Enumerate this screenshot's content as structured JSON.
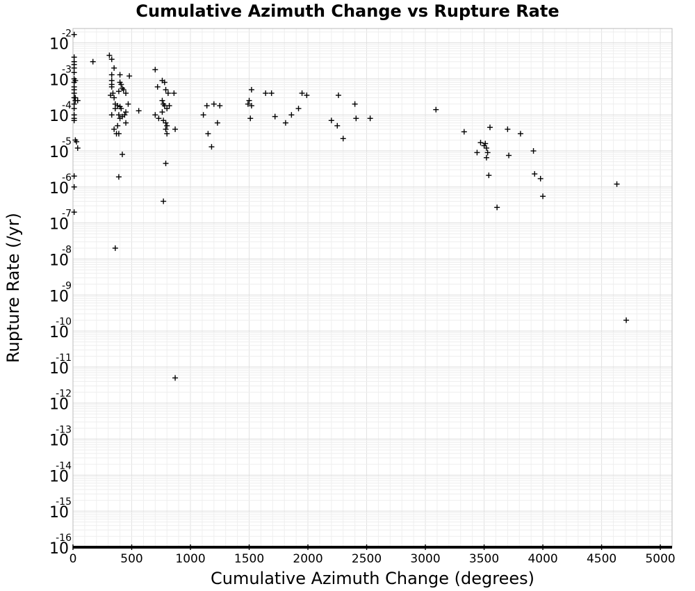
{
  "chart_data": {
    "type": "scatter",
    "title": "Cumulative Azimuth Change vs Rupture Rate",
    "xlabel": "Cumulative Azimuth Change (degrees)",
    "ylabel": "Rupture Rate (/yr)",
    "xlim": [
      0,
      5100
    ],
    "ylim": [
      1e-16,
      0.025
    ],
    "y_scale": "log",
    "x_ticks": [
      0,
      500,
      1000,
      1500,
      2000,
      2500,
      3000,
      3500,
      4000,
      4500,
      5000
    ],
    "y_tick_exponents": [
      -2,
      -3,
      -4,
      -5,
      -6,
      -7,
      -8,
      -9,
      -10,
      -11,
      -12,
      -13,
      -14,
      -15,
      -16
    ],
    "y_tick_base": "10",
    "grid": true,
    "marker": "+",
    "series": [
      {
        "points": [
          [
            10,
            0.017
          ],
          [
            10,
            0.004
          ],
          [
            10,
            0.003
          ],
          [
            10,
            0.0025
          ],
          [
            10,
            0.002
          ],
          [
            10,
            0.0015
          ],
          [
            10,
            0.001
          ],
          [
            10,
            0.0008
          ],
          [
            10,
            0.0006
          ],
          [
            10,
            0.0005
          ],
          [
            10,
            0.0004
          ],
          [
            10,
            0.0003
          ],
          [
            10,
            0.0002
          ],
          [
            10,
            0.00015
          ],
          [
            10,
            0.0001
          ],
          [
            10,
            8e-05
          ],
          [
            10,
            7e-05
          ],
          [
            20,
            0.00025
          ],
          [
            20,
            0.0009
          ],
          [
            20,
            0.0003
          ],
          [
            40,
            0.00025
          ],
          [
            20,
            2e-05
          ],
          [
            30,
            1.8e-05
          ],
          [
            40,
            1.2e-05
          ],
          [
            10,
            2e-06
          ],
          [
            10,
            1e-06
          ],
          [
            10,
            2e-07
          ],
          [
            170,
            0.003
          ],
          [
            310,
            0.0045
          ],
          [
            330,
            0.0035
          ],
          [
            350,
            0.002
          ],
          [
            330,
            0.0013
          ],
          [
            330,
            0.0009
          ],
          [
            330,
            0.0007
          ],
          [
            330,
            0.0006
          ],
          [
            320,
            0.00035
          ],
          [
            340,
            0.0004
          ],
          [
            350,
            0.0003
          ],
          [
            360,
            0.0002
          ],
          [
            360,
            0.00015
          ],
          [
            330,
            0.0001
          ],
          [
            350,
            4e-05
          ],
          [
            370,
            3e-05
          ],
          [
            400,
            0.0013
          ],
          [
            400,
            0.0008
          ],
          [
            410,
            0.0007
          ],
          [
            390,
            0.00045
          ],
          [
            420,
            0.00055
          ],
          [
            430,
            0.0005
          ],
          [
            450,
            0.0004
          ],
          [
            380,
            0.00018
          ],
          [
            400,
            0.00017
          ],
          [
            410,
            0.00015
          ],
          [
            390,
            0.0001
          ],
          [
            420,
            9e-05
          ],
          [
            400,
            8e-05
          ],
          [
            450,
            6e-05
          ],
          [
            470,
            0.0002
          ],
          [
            480,
            0.0012
          ],
          [
            450,
            0.00012
          ],
          [
            440,
            0.0001
          ],
          [
            380,
            5e-05
          ],
          [
            390,
            3e-05
          ],
          [
            420,
            8e-06
          ],
          [
            390,
            1.9e-06
          ],
          [
            360,
            2e-08
          ],
          [
            560,
            0.00013
          ],
          [
            700,
            0.0018
          ],
          [
            720,
            0.0006
          ],
          [
            760,
            0.0009
          ],
          [
            780,
            0.0008
          ],
          [
            790,
            0.0005
          ],
          [
            810,
            0.0004
          ],
          [
            760,
            0.00025
          ],
          [
            770,
            0.0002
          ],
          [
            780,
            0.00018
          ],
          [
            800,
            0.00015
          ],
          [
            820,
            0.00018
          ],
          [
            760,
            0.00012
          ],
          [
            700,
            0.0001
          ],
          [
            730,
            8e-05
          ],
          [
            770,
            7e-05
          ],
          [
            790,
            6e-05
          ],
          [
            800,
            5e-05
          ],
          [
            790,
            4e-05
          ],
          [
            800,
            3e-05
          ],
          [
            860,
            0.0004
          ],
          [
            870,
            4e-05
          ],
          [
            790,
            4.5e-06
          ],
          [
            770,
            4e-07
          ],
          [
            870,
            5e-12
          ],
          [
            1110,
            0.0001
          ],
          [
            1140,
            0.00018
          ],
          [
            1200,
            0.0002
          ],
          [
            1250,
            0.00018
          ],
          [
            1230,
            6e-05
          ],
          [
            1150,
            3e-05
          ],
          [
            1180,
            1.3e-05
          ],
          [
            1490,
            0.0002
          ],
          [
            1500,
            0.00025
          ],
          [
            1520,
            0.00018
          ],
          [
            1520,
            0.0005
          ],
          [
            1510,
            8e-05
          ],
          [
            1640,
            0.0004
          ],
          [
            1690,
            0.0004
          ],
          [
            1720,
            9e-05
          ],
          [
            1810,
            6e-05
          ],
          [
            1860,
            0.0001
          ],
          [
            1920,
            0.00015
          ],
          [
            1950,
            0.0004
          ],
          [
            1990,
            0.00035
          ],
          [
            2200,
            7e-05
          ],
          [
            2250,
            5e-05
          ],
          [
            2260,
            0.00035
          ],
          [
            2300,
            2.2e-05
          ],
          [
            2400,
            0.0002
          ],
          [
            2410,
            8e-05
          ],
          [
            2530,
            8e-05
          ],
          [
            3090,
            0.00014
          ],
          [
            3330,
            3.4e-05
          ],
          [
            3440,
            9e-06
          ],
          [
            3470,
            1.7e-05
          ],
          [
            3500,
            1.4e-05
          ],
          [
            3510,
            1.6e-05
          ],
          [
            3520,
            1.2e-05
          ],
          [
            3530,
            9e-06
          ],
          [
            3520,
            6.5e-06
          ],
          [
            3540,
            2.1e-06
          ],
          [
            3550,
            4.5e-05
          ],
          [
            3610,
            2.7e-07
          ],
          [
            3700,
            4e-05
          ],
          [
            3710,
            7.5e-06
          ],
          [
            3810,
            3e-05
          ],
          [
            3920,
            1e-05
          ],
          [
            3930,
            2.3e-06
          ],
          [
            3980,
            1.7e-06
          ],
          [
            4000,
            5.5e-07
          ],
          [
            4630,
            1.2e-06
          ],
          [
            4710,
            2e-10
          ]
        ]
      },
      {
        "line_from_x": 0,
        "line_to_x": 5100,
        "y": 1e-16,
        "points": [
          [
            0,
            1e-16
          ],
          [
            500,
            1e-16
          ],
          [
            1000,
            1e-16
          ],
          [
            1500,
            1e-16
          ],
          [
            2000,
            1e-16
          ],
          [
            2500,
            1e-16
          ],
          [
            3000,
            1e-16
          ],
          [
            3500,
            1e-16
          ],
          [
            4000,
            1e-16
          ],
          [
            4500,
            1e-16
          ],
          [
            5000,
            1e-16
          ]
        ]
      }
    ]
  }
}
